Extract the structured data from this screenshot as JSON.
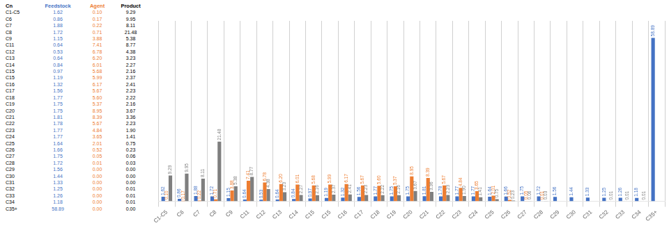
{
  "chart_data": {
    "type": "bar",
    "xlabel": "Cn",
    "categories": [
      "C1-C5",
      "C6",
      "C7",
      "C8",
      "C9",
      "C11",
      "C12",
      "C13",
      "C14",
      "C15",
      "C15",
      "C16",
      "C17",
      "C18",
      "C19",
      "C20",
      "C21",
      "C22",
      "C23",
      "C24",
      "C25",
      "C26",
      "C27",
      "C28",
      "C29",
      "C30",
      "C31",
      "C32",
      "C33",
      "C34",
      "C35+"
    ],
    "series": [
      {
        "name": "Feedstock",
        "color": "#4472c4",
        "values": [
          1.62,
          0.86,
          1.88,
          1.72,
          1.15,
          0.64,
          0.53,
          0.64,
          0.84,
          0.97,
          1.19,
          1.32,
          1.56,
          1.77,
          1.75,
          1.75,
          1.81,
          1.78,
          1.77,
          1.77,
          1.64,
          1.66,
          1.75,
          1.72,
          1.56,
          1.44,
          1.33,
          1.25,
          1.26,
          1.18,
          58.89
        ]
      },
      {
        "name": "Agent",
        "color": "#ed7d31",
        "values": [
          0.1,
          0.17,
          0.22,
          0.71,
          3.88,
          7.41,
          6.78,
          6.2,
          6.01,
          5.68,
          5.99,
          6.17,
          5.67,
          5.6,
          5.37,
          8.95,
          8.39,
          5.67,
          4.84,
          3.65,
          2.01,
          0.52,
          0.05,
          0.01,
          0.0,
          0.0,
          0.0,
          0.0,
          0.0,
          0.0,
          0.0
        ]
      },
      {
        "name": "Product",
        "color": "#7f7f7f",
        "values": [
          9.29,
          9.95,
          8.11,
          21.48,
          5.38,
          8.77,
          4.38,
          3.23,
          2.27,
          2.16,
          2.37,
          2.41,
          2.23,
          2.22,
          2.16,
          3.67,
          3.36,
          2.23,
          1.9,
          1.41,
          0.75,
          0.23,
          0.06,
          0.03,
          0.0,
          0.0,
          0.0,
          0.01,
          0.01,
          0.01,
          0.0
        ]
      }
    ],
    "ylim": [
      0,
      65
    ],
    "tick_labels": "x",
    "grid": "x",
    "data_labels": true
  }
}
